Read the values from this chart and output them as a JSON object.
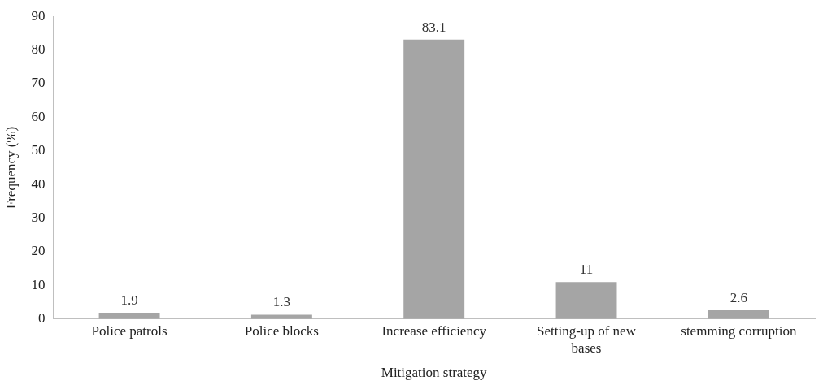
{
  "chart_data": {
    "type": "bar",
    "xlabel": "Mitigation strategy",
    "ylabel": "Frequency (%)",
    "categories": [
      "Police patrols",
      "Police blocks",
      "Increase efficiency",
      "Setting-up of new bases",
      "stemming corruption"
    ],
    "values": [
      1.9,
      1.3,
      83.1,
      11,
      2.6
    ],
    "color": "#a5a5a5",
    "ylim": [
      0,
      90
    ],
    "yticks": [
      0,
      10,
      20,
      30,
      40,
      50,
      60,
      70,
      80,
      90
    ],
    "grid": false,
    "data_labels": true
  }
}
